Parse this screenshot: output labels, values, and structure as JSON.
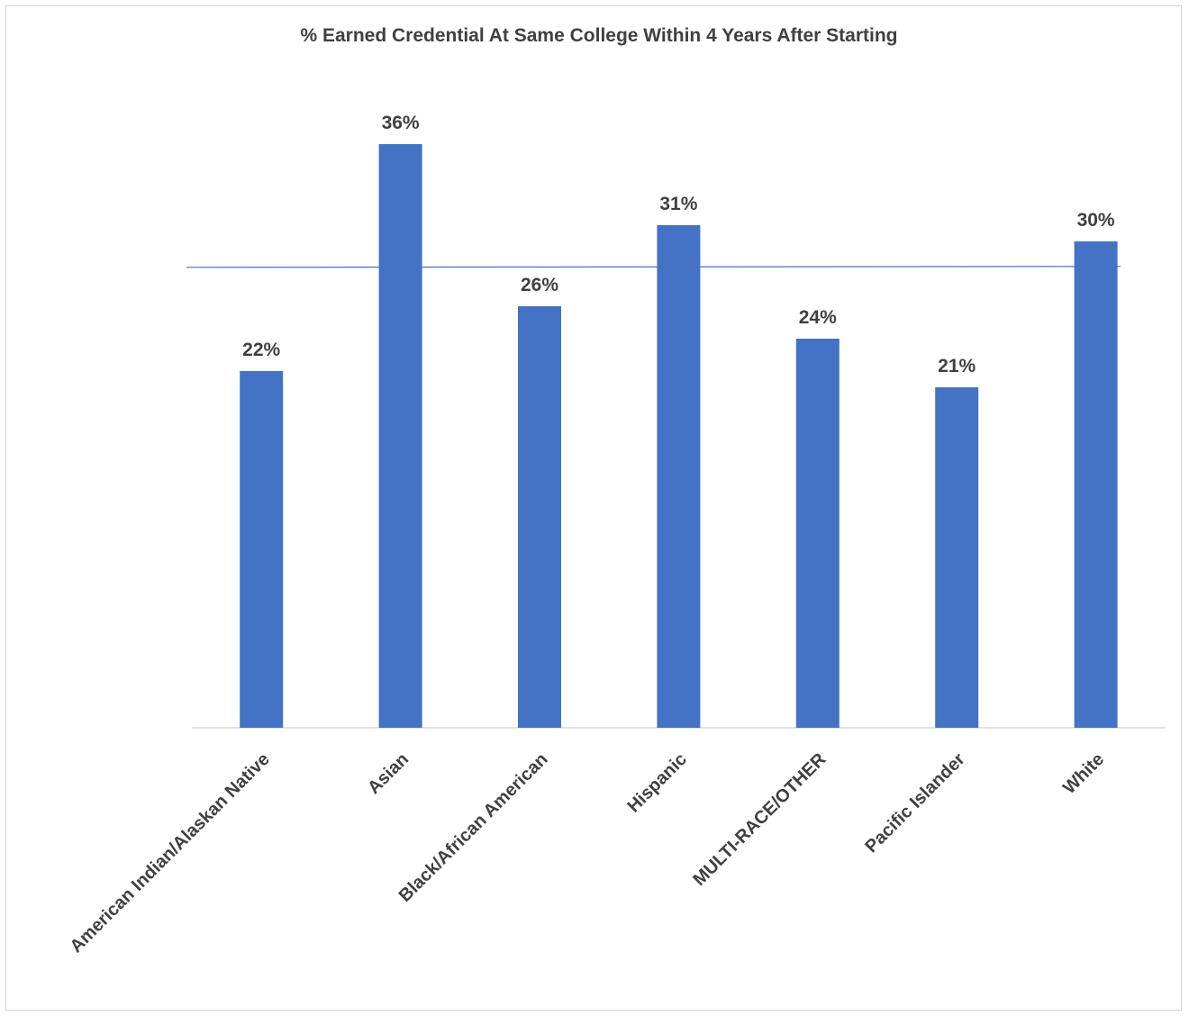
{
  "chart_data": {
    "type": "bar",
    "title": "% Earned Credential At Same College Within 4 Years After Starting",
    "xlabel": "",
    "ylabel": "",
    "categories": [
      "American Indian/Alaskan Native",
      "Asian",
      "Black/African American",
      "Hispanic",
      "MULTI-RACE/OTHER",
      "Pacific Islander",
      "White"
    ],
    "values": [
      22,
      36,
      26,
      31,
      24,
      21,
      30
    ],
    "data_labels": [
      "22%",
      "36%",
      "26%",
      "31%",
      "24%",
      "21%",
      "30%"
    ],
    "reference_line": {
      "value": 28.4
    },
    "ylim": [
      0,
      40
    ],
    "grid": false,
    "legend": "none",
    "colors": {
      "bar": "#4472C4",
      "reference_line": "#4472C4",
      "axis": "#d9d9d9",
      "text": "#404040"
    }
  }
}
